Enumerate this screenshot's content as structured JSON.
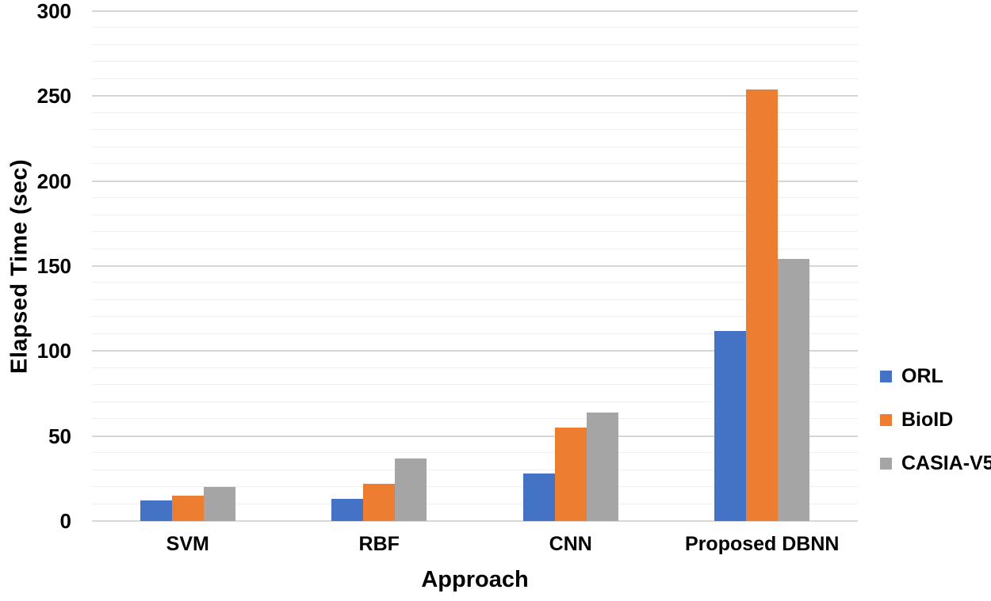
{
  "chart_data": {
    "type": "bar",
    "title": "",
    "xlabel": "Approach",
    "ylabel": "Elapsed Time (sec)",
    "categories": [
      "SVM",
      "RBF",
      "CNN",
      "Proposed DBNN"
    ],
    "series": [
      {
        "name": "ORL",
        "color": "#4472C4",
        "values": [
          12,
          13,
          28,
          112
        ]
      },
      {
        "name": "BioID",
        "color": "#ED7D31",
        "values": [
          15,
          22,
          55,
          254
        ]
      },
      {
        "name": "CASIA-V5",
        "color": "#A5A5A5",
        "values": [
          20,
          37,
          64,
          154
        ]
      }
    ],
    "ylim": [
      0,
      300
    ],
    "y_major_step": 50,
    "y_minor_step": 10,
    "y_tick_labels": [
      "0",
      "50",
      "100",
      "150",
      "200",
      "250",
      "300"
    ],
    "grid": "horizontal-minor-and-major",
    "legend_position": "right",
    "axis_colors": {
      "major_gridline": "#d6d6d6",
      "minor_gridline": "#efefef",
      "baseline": "#d9d9d9",
      "text": "#000000"
    }
  }
}
